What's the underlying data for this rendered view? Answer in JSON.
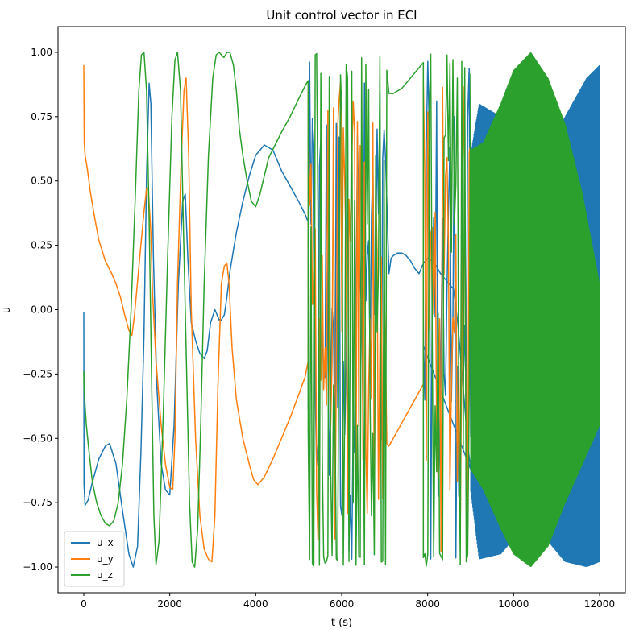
{
  "chart_data": {
    "type": "line",
    "title": "Unit control vector in ECI",
    "xlabel": "t (s)",
    "ylabel": "u",
    "xlim": [
      -600,
      12600
    ],
    "ylim": [
      -1.1,
      1.1
    ],
    "xticks": [
      0,
      2000,
      4000,
      6000,
      8000,
      10000,
      12000
    ],
    "xtick_labels": [
      "0",
      "2000",
      "4000",
      "6000",
      "8000",
      "10000",
      "12000"
    ],
    "yticks": [
      -1.0,
      -0.75,
      -0.5,
      -0.25,
      0.0,
      0.25,
      0.5,
      0.75,
      1.0
    ],
    "ytick_labels": [
      "−1.00",
      "−0.75",
      "−0.50",
      "−0.25",
      "0.00",
      "0.25",
      "0.50",
      "0.75",
      "1.00"
    ],
    "grid": false,
    "legend_position": "lower-left",
    "series": [
      {
        "name": "u_x",
        "color": "#1f77b4",
        "x": [
          0,
          5,
          30,
          100,
          200,
          350,
          500,
          600,
          750,
          900,
          1050,
          1150,
          1250,
          1330,
          1400,
          1460,
          1520,
          1560,
          1620,
          1700,
          1800,
          1900,
          2000,
          2100,
          2200,
          2300,
          2360,
          2420,
          2500,
          2600,
          2700,
          2800,
          2870,
          2950,
          3050,
          3150,
          3200,
          3270,
          3330,
          3400,
          3550,
          3700,
          3850,
          4000,
          4200,
          4400,
          4600,
          4800,
          5000,
          5150,
          5220
        ],
        "y": [
          -0.01,
          -0.68,
          -0.76,
          -0.74,
          -0.67,
          -0.58,
          -0.53,
          -0.52,
          -0.6,
          -0.78,
          -0.95,
          -1.0,
          -0.92,
          -0.55,
          -0.1,
          0.52,
          0.88,
          0.8,
          0.2,
          -0.3,
          -0.6,
          -0.7,
          -0.72,
          -0.45,
          0.1,
          0.42,
          0.45,
          0.2,
          -0.05,
          -0.12,
          -0.17,
          -0.19,
          -0.16,
          -0.05,
          0.0,
          -0.04,
          -0.04,
          -0.02,
          0.05,
          0.15,
          0.3,
          0.42,
          0.52,
          0.6,
          0.64,
          0.62,
          0.54,
          0.48,
          0.42,
          0.37,
          0.34
        ],
        "x2": [
          7100,
          7150,
          7200,
          7300,
          7400,
          7500,
          7600,
          7700,
          7800,
          7900,
          8000,
          8100,
          8200,
          8300,
          8400,
          8500,
          8600,
          8700,
          8800,
          8900,
          8950,
          9000
        ],
        "y2": [
          0.14,
          0.2,
          0.21,
          0.22,
          0.22,
          0.21,
          0.19,
          0.16,
          0.14,
          0.18,
          0.2,
          0.19,
          0.17,
          0.14,
          0.12,
          0.1,
          0.08,
          -0.05,
          -0.25,
          -0.45,
          -0.55,
          -0.62
        ],
        "dense_envelope": {
          "t_start": 9000,
          "t_end": 12000,
          "upper": [
            [
              9000,
              0.6
            ],
            [
              9200,
              0.8
            ],
            [
              9700,
              0.75
            ],
            [
              10200,
              0.5
            ],
            [
              10700,
              0.6
            ],
            [
              11200,
              0.75
            ],
            [
              11700,
              0.9
            ],
            [
              12000,
              0.95
            ]
          ],
          "lower": [
            [
              9000,
              -0.7
            ],
            [
              9200,
              -0.97
            ],
            [
              9700,
              -0.95
            ],
            [
              10200,
              -0.85
            ],
            [
              10700,
              -0.88
            ],
            [
              11200,
              -0.98
            ],
            [
              11700,
              -1.0
            ],
            [
              12000,
              -0.98
            ]
          ]
        }
      },
      {
        "name": "u_y",
        "color": "#ff7f0e",
        "x": [
          0,
          5,
          10,
          30,
          80,
          150,
          250,
          350,
          500,
          650,
          750,
          850,
          950,
          1050,
          1120,
          1180,
          1300,
          1400,
          1460,
          1500,
          1560,
          1600,
          1680,
          1800,
          1900,
          2000,
          2070,
          2120,
          2180,
          2260,
          2330,
          2380,
          2440,
          2500,
          2600,
          2700,
          2800,
          2900,
          2980,
          3050,
          3120,
          3200,
          3270,
          3330,
          3380,
          3450,
          3550,
          3700,
          3850,
          3950,
          4050,
          4200,
          4400,
          4600,
          4800,
          5000,
          5150,
          5220
        ],
        "y": [
          0.95,
          0.8,
          0.65,
          0.6,
          0.55,
          0.46,
          0.36,
          0.27,
          0.19,
          0.14,
          0.1,
          0.05,
          -0.02,
          -0.08,
          -0.1,
          -0.02,
          0.2,
          0.38,
          0.47,
          0.47,
          0.3,
          0.06,
          -0.2,
          -0.45,
          -0.6,
          -0.69,
          -0.7,
          -0.5,
          0.1,
          0.55,
          0.85,
          0.9,
          0.6,
          0.0,
          -0.5,
          -0.8,
          -0.93,
          -0.97,
          -0.98,
          -0.8,
          -0.3,
          0.1,
          0.17,
          0.18,
          0.1,
          -0.15,
          -0.35,
          -0.5,
          -0.6,
          -0.66,
          -0.68,
          -0.65,
          -0.58,
          -0.5,
          -0.42,
          -0.33,
          -0.26,
          -0.2
        ],
        "x2": [
          7050,
          7100,
          7200,
          7300,
          7400,
          7500,
          7600,
          7700,
          7800,
          7900
        ],
        "y2": [
          -0.52,
          -0.53,
          -0.5,
          -0.47,
          -0.44,
          -0.41,
          -0.38,
          -0.35,
          -0.32,
          -0.29
        ],
        "dense_envelope": {
          "t_start": 9000,
          "t_end": 12000,
          "upper": [
            [
              9000,
              0.1
            ],
            [
              9500,
              0.04
            ],
            [
              10000,
              0.02
            ],
            [
              10500,
              0.01
            ],
            [
              11000,
              0.01
            ],
            [
              11500,
              0.01
            ],
            [
              12000,
              0.01
            ]
          ],
          "lower": [
            [
              9000,
              -0.12
            ],
            [
              9500,
              -0.08
            ],
            [
              10000,
              -0.06
            ],
            [
              10500,
              -0.05
            ],
            [
              11000,
              -0.05
            ],
            [
              11500,
              -0.05
            ],
            [
              12000,
              -0.05
            ]
          ]
        }
      },
      {
        "name": "u_z",
        "color": "#2ca02c",
        "x": [
          0,
          5,
          20,
          60,
          120,
          200,
          300,
          400,
          500,
          600,
          700,
          800,
          900,
          1000,
          1100,
          1200,
          1280,
          1340,
          1400,
          1460,
          1520,
          1580,
          1630,
          1680,
          1750,
          1850,
          1950,
          2050,
          2120,
          2180,
          2250,
          2320,
          2400,
          2460,
          2520,
          2580,
          2650,
          2720,
          2800,
          2900,
          3000,
          3080,
          3150,
          3200,
          3260,
          3330,
          3400,
          3480,
          3550,
          3620,
          3700,
          3800,
          3900,
          4000,
          4100,
          4200,
          4300,
          4450,
          4600,
          4800,
          5000,
          5150,
          5220
        ],
        "y": [
          -0.24,
          -0.3,
          -0.35,
          -0.45,
          -0.55,
          -0.67,
          -0.75,
          -0.8,
          -0.83,
          -0.84,
          -0.82,
          -0.75,
          -0.6,
          -0.35,
          0.0,
          0.45,
          0.85,
          0.99,
          1.0,
          0.85,
          0.35,
          -0.3,
          -0.8,
          -0.99,
          -0.9,
          -0.4,
          0.2,
          0.75,
          0.97,
          1.0,
          0.85,
          0.3,
          -0.3,
          -0.75,
          -0.98,
          -1.0,
          -0.85,
          -0.45,
          0.1,
          0.6,
          0.9,
          0.99,
          1.0,
          0.99,
          0.98,
          1.0,
          1.0,
          0.95,
          0.85,
          0.7,
          0.6,
          0.5,
          0.42,
          0.4,
          0.45,
          0.52,
          0.59,
          0.64,
          0.69,
          0.75,
          0.82,
          0.87,
          0.89
        ],
        "x2": [
          7050,
          7100,
          7200,
          7300,
          7400,
          7500,
          7600,
          7700,
          7800,
          7900
        ],
        "y2": [
          0.93,
          0.84,
          0.84,
          0.85,
          0.86,
          0.88,
          0.9,
          0.92,
          0.94,
          0.96
        ],
        "dense_envelope": {
          "t_start": 9000,
          "t_end": 12000,
          "upper": [
            [
              9000,
              0.62
            ],
            [
              9300,
              0.65
            ],
            [
              9700,
              0.8
            ],
            [
              10000,
              0.93
            ],
            [
              10400,
              1.0
            ],
            [
              10800,
              0.9
            ],
            [
              11200,
              0.72
            ],
            [
              11600,
              0.45
            ],
            [
              12000,
              0.1
            ]
          ],
          "lower": [
            [
              9000,
              -0.62
            ],
            [
              9300,
              -0.7
            ],
            [
              9700,
              -0.85
            ],
            [
              10000,
              -0.95
            ],
            [
              10400,
              -1.0
            ],
            [
              10800,
              -0.92
            ],
            [
              11200,
              -0.75
            ],
            [
              11600,
              -0.6
            ],
            [
              12000,
              -0.45
            ]
          ]
        }
      }
    ],
    "chaotic_segment": {
      "t_start": 5220,
      "t_end": 9000,
      "description_gap_axis": [
        7000,
        7050,
        7900
      ]
    }
  }
}
